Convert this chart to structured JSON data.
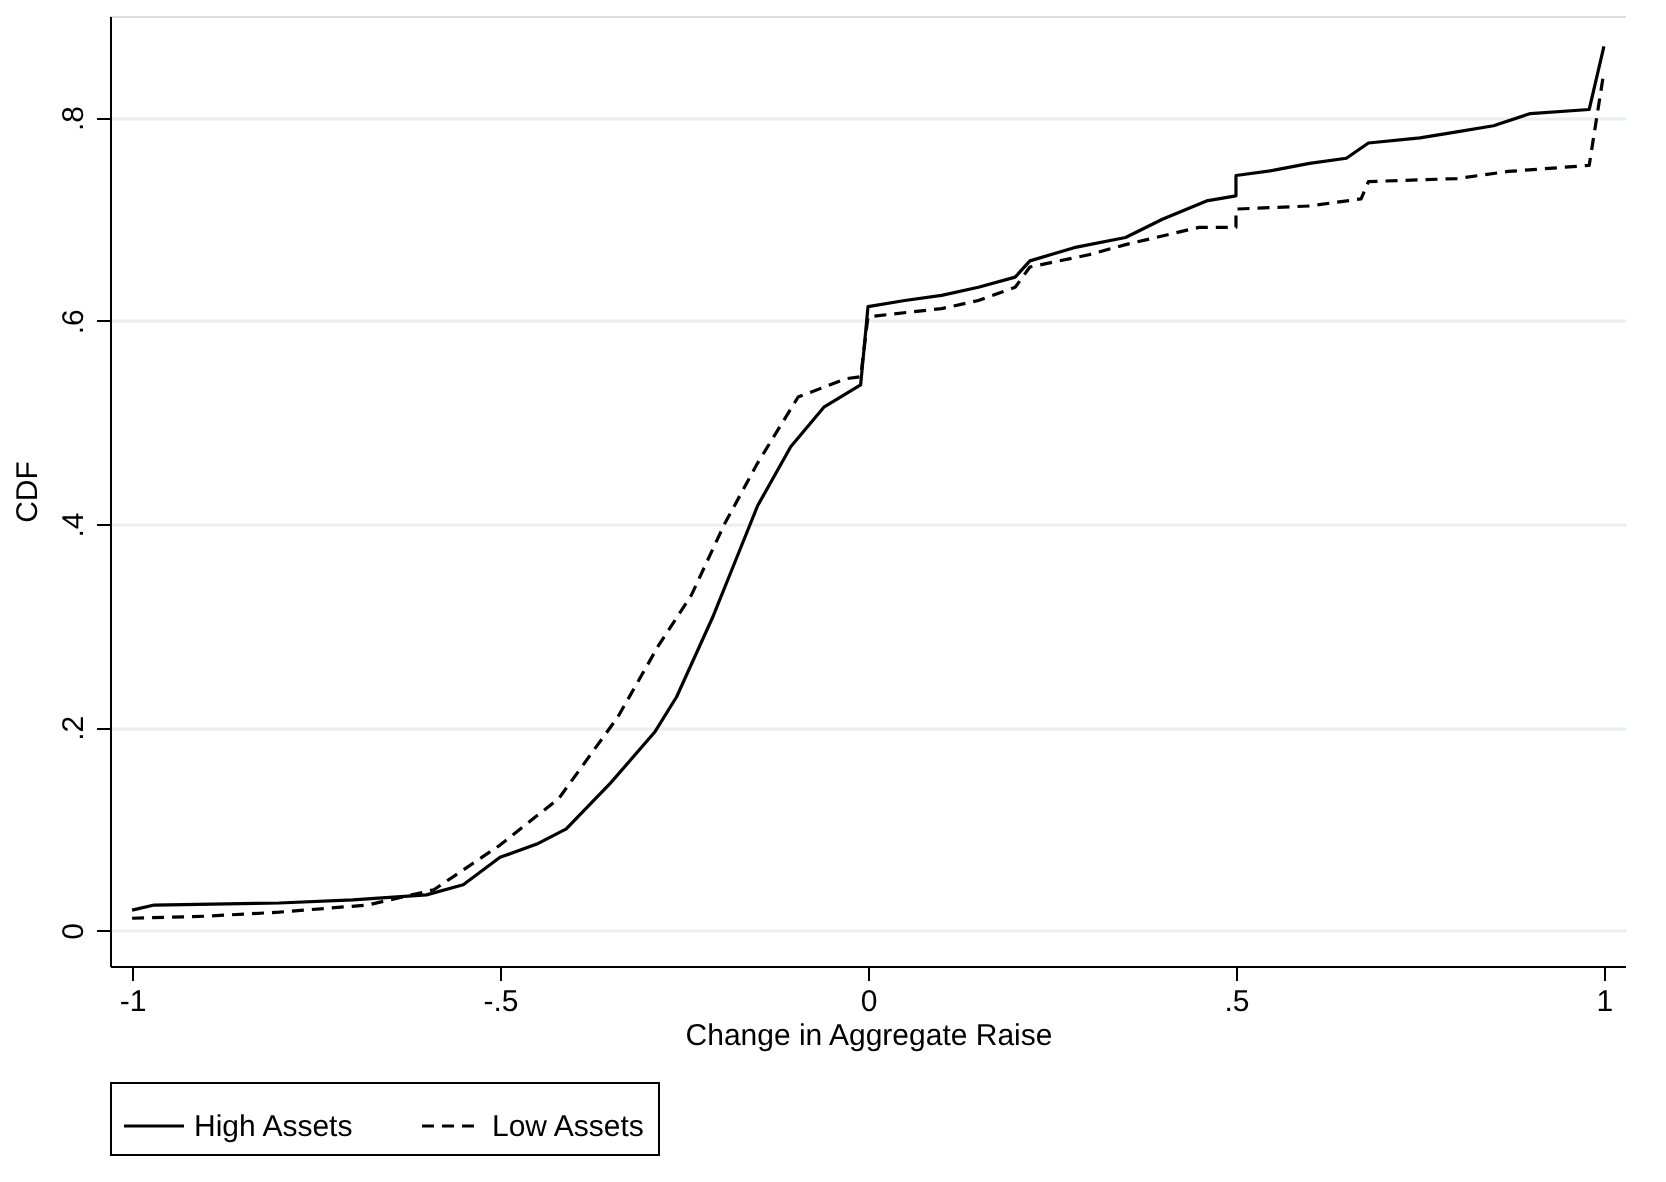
{
  "chart_data": {
    "type": "line",
    "xlabel": "Change in Aggregate Raise",
    "ylabel": "CDF",
    "xlim": [
      -1.03,
      1.03
    ],
    "ylim": [
      -0.035,
      0.9
    ],
    "xticks": [
      -1,
      {
        "value": -0.5,
        "label": "-.5"
      },
      0,
      {
        "value": 0.5,
        "label": ".5"
      },
      1
    ],
    "yticks": [
      0,
      {
        "value": 0.2,
        "label": ".2"
      },
      {
        "value": 0.4,
        "label": ".4"
      },
      {
        "value": 0.6,
        "label": ".6"
      },
      {
        "value": 0.8,
        "label": ".8"
      }
    ],
    "grid": "y",
    "legend": "bottom",
    "marker": "none",
    "series": [
      {
        "name": "High Assets",
        "color": "#000000",
        "line_style": "solid",
        "x": [
          -1,
          -0.97,
          -0.8,
          -0.7,
          -0.6,
          -0.55,
          -0.5,
          -0.45,
          -0.41,
          -0.35,
          -0.29,
          -0.26,
          -0.21,
          -0.185,
          -0.15,
          -0.105,
          -0.06,
          -0.01,
          0,
          0.05,
          0.1,
          0.15,
          0.2,
          0.22,
          0.28,
          0.35,
          0.4,
          0.46,
          0.5,
          0.5,
          0.55,
          0.6,
          0.65,
          0.68,
          0.75,
          0.8,
          0.85,
          0.9,
          0.98,
          1
        ],
        "values": [
          0.02,
          0.025,
          0.027,
          0.03,
          0.035,
          0.045,
          0.072,
          0.085,
          0.1,
          0.145,
          0.195,
          0.23,
          0.31,
          0.355,
          0.418,
          0.476,
          0.515,
          0.537,
          0.614,
          0.62,
          0.625,
          0.633,
          0.643,
          0.659,
          0.672,
          0.682,
          0.7,
          0.718,
          0.723,
          0.743,
          0.748,
          0.755,
          0.76,
          0.775,
          0.78,
          0.786,
          0.792,
          0.804,
          0.808,
          0.87
        ]
      },
      {
        "name": "Low Assets",
        "color": "#000000",
        "line_style": "dashed",
        "x": [
          -1,
          -0.9,
          -0.8,
          -0.68,
          -0.59,
          -0.5,
          -0.42,
          -0.34,
          -0.285,
          -0.24,
          -0.195,
          -0.15,
          -0.095,
          -0.03,
          -0.01,
          0,
          0.1,
          0.15,
          0.2,
          0.22,
          0.3,
          0.35,
          0.45,
          0.5,
          0.5,
          0.6,
          0.67,
          0.68,
          0.8,
          0.87,
          0.98,
          1
        ],
        "values": [
          0.012,
          0.014,
          0.018,
          0.025,
          0.04,
          0.084,
          0.13,
          0.21,
          0.28,
          0.33,
          0.4,
          0.46,
          0.525,
          0.543,
          0.545,
          0.604,
          0.612,
          0.62,
          0.633,
          0.653,
          0.665,
          0.675,
          0.692,
          0.692,
          0.71,
          0.713,
          0.72,
          0.737,
          0.74,
          0.747,
          0.753,
          0.845
        ]
      }
    ]
  }
}
